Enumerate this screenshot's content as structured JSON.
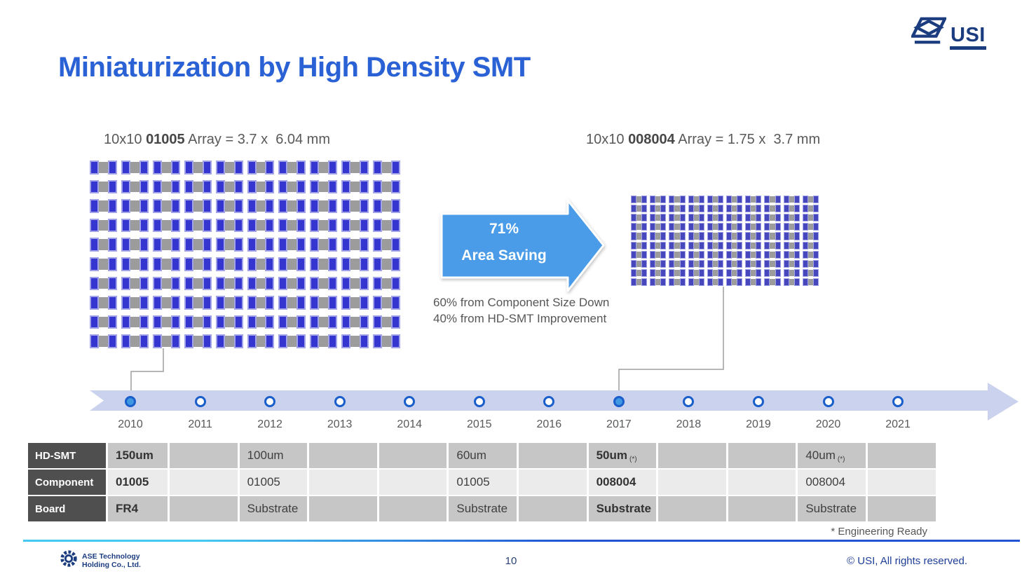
{
  "slide": {
    "title": "Miniaturization by High Density SMT",
    "footnote": "* Engineering Ready",
    "page_number": "10",
    "copyright": "© USI, All rights reserved."
  },
  "logos": {
    "usi": "USI",
    "ase_line1": "ASE Technology",
    "ase_line2": "Holding Co., Ltd."
  },
  "left_panel": {
    "caption_prefix": "10x10 ",
    "caption_bold": "01005",
    "caption_suffix": " Array = 3.7 x  6.04 mm",
    "grid": {
      "rows": 10,
      "cols": 10
    }
  },
  "right_panel": {
    "caption_prefix": "10x10 ",
    "caption_bold": "008004",
    "caption_suffix": " Array = 1.75 x  3.7 mm",
    "grid": {
      "rows": 10,
      "cols": 10
    }
  },
  "arrow_callout": {
    "line1": "71%",
    "line2": "Area Saving"
  },
  "notes": [
    "60% from Component Size Down",
    "40% from HD-SMT Improvement"
  ],
  "timeline": {
    "years": [
      "2010",
      "2011",
      "2012",
      "2013",
      "2014",
      "2015",
      "2016",
      "2017",
      "2018",
      "2019",
      "2020",
      "2021"
    ],
    "filled_years": [
      "2010",
      "2017"
    ]
  },
  "table": {
    "rows": [
      {
        "label": "HD-SMT",
        "cells": [
          {
            "text": "150um",
            "bold": true
          },
          null,
          {
            "text": "100um"
          },
          null,
          null,
          {
            "text": "60um"
          },
          null,
          {
            "text": "50um",
            "bold": true,
            "note": "(*)"
          },
          null,
          null,
          {
            "text": "40um",
            "note": "(*)"
          },
          null
        ]
      },
      {
        "label": "Component",
        "cells": [
          {
            "text": "01005",
            "bold": true
          },
          null,
          {
            "text": "01005"
          },
          null,
          null,
          {
            "text": "01005"
          },
          null,
          {
            "text": "008004",
            "bold": true
          },
          null,
          null,
          {
            "text": "008004"
          },
          null
        ]
      },
      {
        "label": "Board",
        "cells": [
          {
            "text": "FR4",
            "bold": true
          },
          null,
          {
            "text": "Substrate"
          },
          null,
          null,
          {
            "text": "Substrate"
          },
          null,
          {
            "text": "Substrate",
            "bold": true
          },
          null,
          null,
          {
            "text": "Substrate"
          },
          null
        ]
      }
    ]
  },
  "colors": {
    "title_blue": "#2a62d6",
    "callout_arrow_blue": "#4a9ce8",
    "timeline_band": "#cbd2ee",
    "dot_stroke": "#1a5ecb",
    "dot_fill_active": "#3f98e1",
    "component_terminal_blue": "#3535cf",
    "component_body_gray": "#9c9c9c",
    "table_header_bg": "#4f4f4f",
    "table_row_gray": "#c6c6c6",
    "table_row_light": "#ebebeb",
    "footer_navy": "#1c3c80"
  }
}
